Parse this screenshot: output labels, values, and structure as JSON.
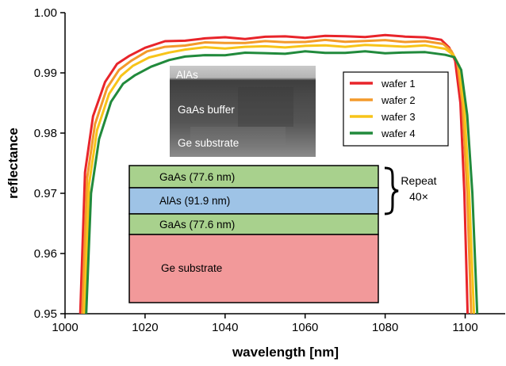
{
  "chart_data": {
    "type": "line",
    "xlabel": "wavelength [nm]",
    "ylabel": "reflectance",
    "xlim": [
      1000,
      1110
    ],
    "ylim": [
      0.95,
      1.0
    ],
    "x_ticks": [
      "1000",
      "1020",
      "1040",
      "1060",
      "1080",
      "1100"
    ],
    "y_ticks": [
      "0.95",
      "0.96",
      "0.97",
      "0.98",
      "0.99",
      "1.00"
    ],
    "grid": false,
    "legend_position": "top-right",
    "series": [
      {
        "name": "wafer 1",
        "color": "#e8242a",
        "x": [
          1003.8,
          1005,
          1007,
          1010,
          1013,
          1016,
          1020,
          1025,
          1030,
          1035,
          1040,
          1045,
          1050,
          1055,
          1060,
          1065,
          1070,
          1075,
          1080,
          1085,
          1090,
          1094,
          1096,
          1097.5,
          1098.8,
          1099.8,
          1100.6
        ],
        "y": [
          0.95,
          0.9735,
          0.9828,
          0.9885,
          0.9915,
          0.9928,
          0.9942,
          0.9951,
          0.9955,
          0.9957,
          0.9958,
          0.9958,
          0.9959,
          0.996,
          0.996,
          0.996,
          0.9961,
          0.9961,
          0.9961,
          0.9961,
          0.996,
          0.9955,
          0.9942,
          0.992,
          0.985,
          0.97,
          0.95
        ]
      },
      {
        "name": "wafer 2",
        "color": "#f39a2b",
        "x": [
          1004.3,
          1005.5,
          1007.5,
          1010.5,
          1013.5,
          1016.5,
          1020.5,
          1025,
          1030,
          1035,
          1040,
          1045,
          1050,
          1055,
          1060,
          1065,
          1070,
          1075,
          1080,
          1085,
          1090,
          1094.5,
          1096.5,
          1098,
          1099.3,
          1100.5,
          1101.5
        ],
        "y": [
          0.95,
          0.9725,
          0.9815,
          0.9875,
          0.9905,
          0.992,
          0.9934,
          0.9943,
          0.9947,
          0.9949,
          0.995,
          0.9951,
          0.9951,
          0.9952,
          0.9952,
          0.9953,
          0.9953,
          0.9953,
          0.9953,
          0.9953,
          0.9952,
          0.9948,
          0.9937,
          0.9918,
          0.985,
          0.97,
          0.95
        ]
      },
      {
        "name": "wafer 3",
        "color": "#f7c419",
        "x": [
          1004.8,
          1006,
          1008,
          1011,
          1014,
          1017,
          1021,
          1026,
          1030,
          1035,
          1040,
          1045,
          1050,
          1055,
          1060,
          1065,
          1070,
          1075,
          1080,
          1085,
          1090,
          1095,
          1097,
          1098.5,
          1099.8,
          1101,
          1102.2
        ],
        "y": [
          0.95,
          0.9715,
          0.9805,
          0.9865,
          0.9895,
          0.9912,
          0.9926,
          0.9935,
          0.9939,
          0.9941,
          0.9942,
          0.9943,
          0.9943,
          0.9944,
          0.9944,
          0.9945,
          0.9945,
          0.9945,
          0.9945,
          0.9945,
          0.9944,
          0.994,
          0.993,
          0.9912,
          0.984,
          0.97,
          0.95
        ]
      },
      {
        "name": "wafer 4",
        "color": "#218a3c",
        "x": [
          1005.3,
          1006.5,
          1008.5,
          1011.5,
          1014.5,
          1017.5,
          1021.5,
          1026,
          1030,
          1035,
          1040,
          1045,
          1050,
          1055,
          1060,
          1065,
          1070,
          1075,
          1080,
          1085,
          1090,
          1095,
          1097.3,
          1099,
          1100.5,
          1101.8,
          1103
        ],
        "y": [
          0.95,
          0.97,
          0.979,
          0.9852,
          0.9882,
          0.9898,
          0.9912,
          0.9921,
          0.9926,
          0.9929,
          0.9931,
          0.9932,
          0.9933,
          0.9933,
          0.9934,
          0.9934,
          0.9934,
          0.9934,
          0.9934,
          0.9934,
          0.9933,
          0.993,
          0.9926,
          0.9905,
          0.983,
          0.97,
          0.95
        ]
      }
    ]
  },
  "inset": {
    "tem_labels": [
      "AlAs",
      "GaAs buffer",
      "Ge substrate"
    ],
    "layers": [
      {
        "label": "GaAs (77.6 nm)",
        "color": "#a8d18d"
      },
      {
        "label": "AlAs (91.9 nm)",
        "color": "#9ec3e6"
      },
      {
        "label": "GaAs (77.6 nm)",
        "color": "#a8d18d"
      },
      {
        "label": "Ge substrate",
        "color": "#f2999a"
      }
    ],
    "repeat_label": "Repeat",
    "repeat_count": "40×"
  }
}
